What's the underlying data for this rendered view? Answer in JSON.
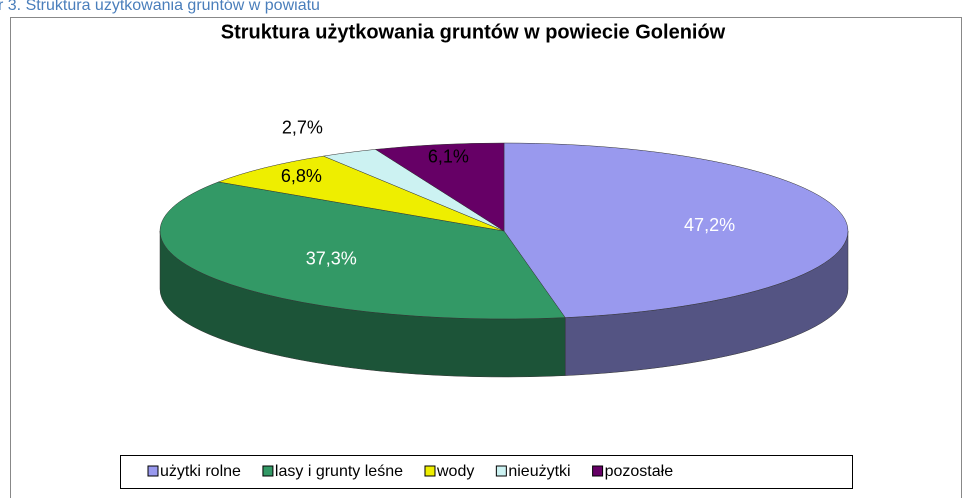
{
  "chart_data": {
    "type": "pie3d",
    "caption": "r 3. Struktura użytkowania gruntów w powiatu",
    "title": "Struktura użytkowania gruntów w powiecie Goleniów",
    "categories": [
      "użytki rolne",
      "lasy i grunty leśne",
      "wody",
      "nieużytki",
      "pozostałe"
    ],
    "values": [
      47.2,
      37.3,
      6.8,
      2.7,
      6.1
    ],
    "value_labels": [
      "47,2%",
      "37,3%",
      "6,8%",
      "2,7%",
      "6,1%"
    ],
    "colors": [
      "#9999ee",
      "#339966",
      "#eeee00",
      "#ccf2f2",
      "#660066"
    ],
    "label_colors": [
      "#ffffff",
      "#ffffff",
      "#000000",
      "#000000",
      "#000000"
    ],
    "legend": "bottom"
  }
}
